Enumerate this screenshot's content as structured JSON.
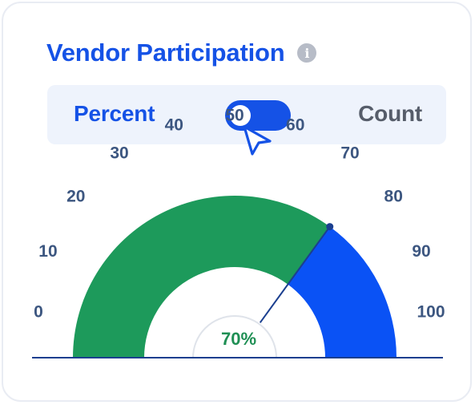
{
  "widget": {
    "title": "Vendor Participation",
    "info_icon": "info-icon"
  },
  "toggle": {
    "left_label": "Percent",
    "right_label": "Count",
    "state": "percent",
    "switch_icon": "toggle-switch-icon",
    "cursor_icon": "pointer-cursor-icon"
  },
  "gauge": {
    "value": 70,
    "min": 0,
    "max": 100,
    "value_label": "70%",
    "ticks": [
      "0",
      "10",
      "20",
      "30",
      "40",
      "50",
      "60",
      "70",
      "80",
      "90",
      "100"
    ],
    "colors": {
      "filled": "#1d9a5b",
      "remaining": "#0a52f5",
      "tick_text": "#3c5680",
      "needle": "#1b3f8f",
      "value_text": "#1f8f54"
    }
  }
}
